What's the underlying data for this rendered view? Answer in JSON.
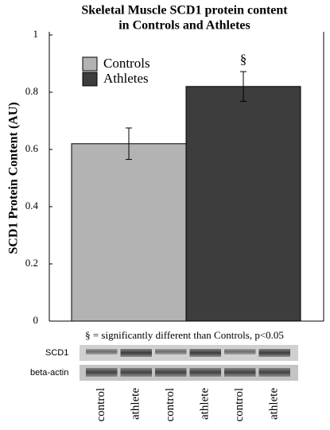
{
  "chart_data": {
    "type": "bar",
    "title": [
      "Skeletal Muscle SCD1 protein content",
      "in Controls and Athletes"
    ],
    "y_label": "SCD1 Protein Content (AU)",
    "categories": [
      null
    ],
    "series": [
      {
        "name": "Controls",
        "color": "#b3b3b3",
        "values": [
          0.62
        ],
        "errors": [
          0.055
        ]
      },
      {
        "name": "Athletes",
        "color": "#3d3d3d",
        "values": [
          0.82
        ],
        "errors": [
          0.052
        ]
      }
    ],
    "ylim": [
      0,
      1
    ],
    "yticks": [
      0,
      0.2,
      0.4,
      0.6,
      0.8,
      1
    ],
    "annotation": "§",
    "footnote": "§ = significantly different than Controls, p<0.05"
  },
  "blot": {
    "rows": [
      "SCD1",
      "beta-actin"
    ],
    "lanes": [
      "control",
      "athlete",
      "control",
      "athlete",
      "control",
      "athlete"
    ]
  }
}
